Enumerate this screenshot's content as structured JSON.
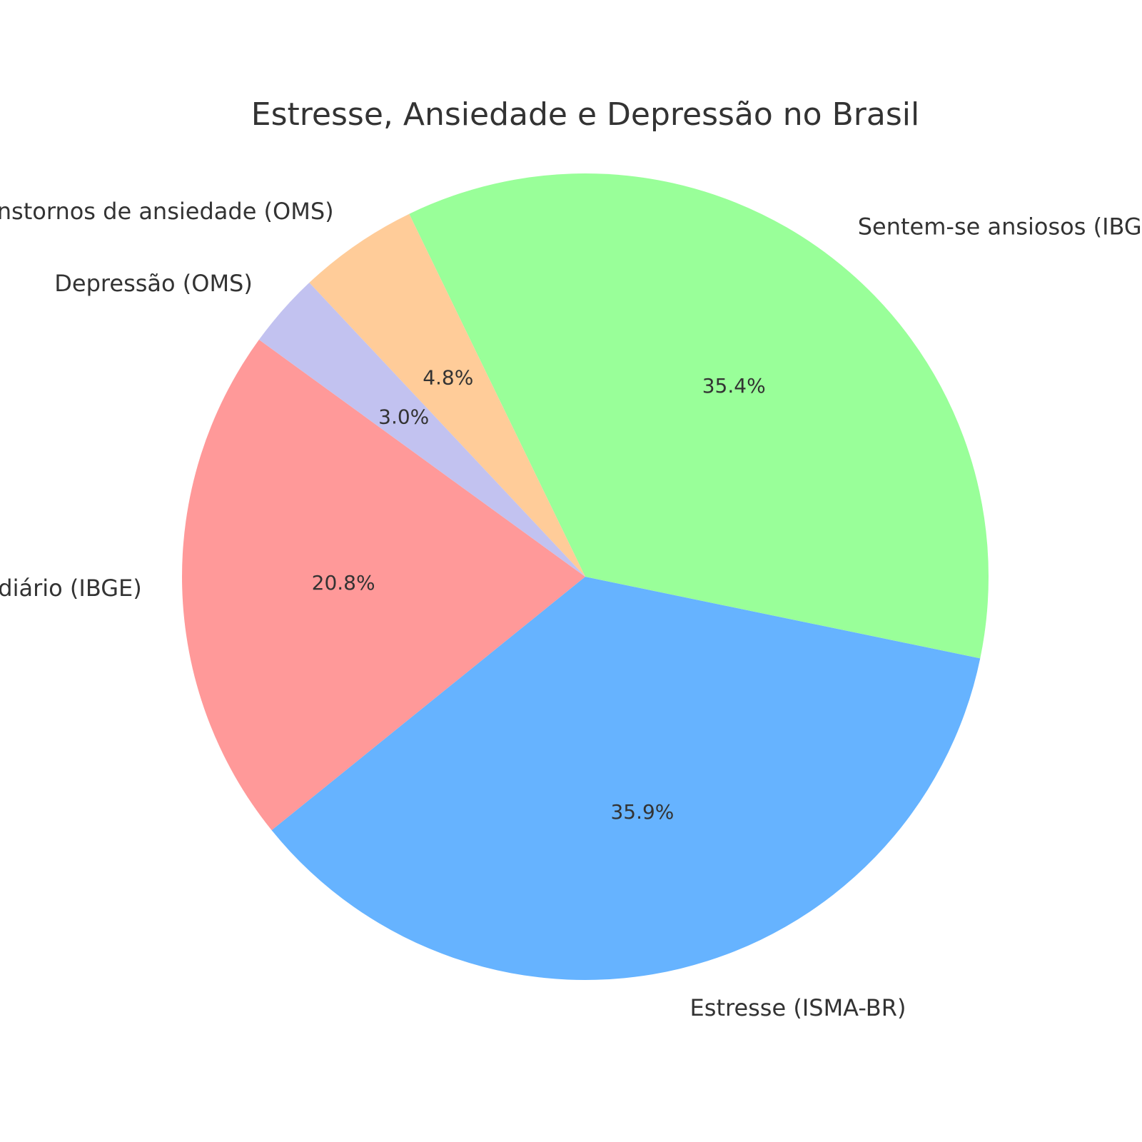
{
  "chart_data": {
    "type": "pie",
    "title": "Estresse, Ansiedade e Depressão no Brasil",
    "start_angle_deg": 144,
    "direction": "counterclockwise",
    "slices": [
      {
        "label": "Sofrem estresse diário (IBGE)",
        "value": 20.8,
        "pct_label": "20.8%",
        "color": "#ff9999"
      },
      {
        "label": "Estresse (ISMA-BR)",
        "value": 35.9,
        "pct_label": "35.9%",
        "color": "#66b3ff"
      },
      {
        "label": "Sentem-se ansiosos (IBGE)",
        "value": 35.4,
        "pct_label": "35.4%",
        "color": "#99ff99"
      },
      {
        "label": "Transtornos de ansiedade (OMS)",
        "value": 4.8,
        "pct_label": "4.8%",
        "color": "#ffcc99"
      },
      {
        "label": "Depressão (OMS)",
        "value": 3.0,
        "pct_label": "3.0%",
        "color": "#c2c2f0"
      }
    ]
  }
}
